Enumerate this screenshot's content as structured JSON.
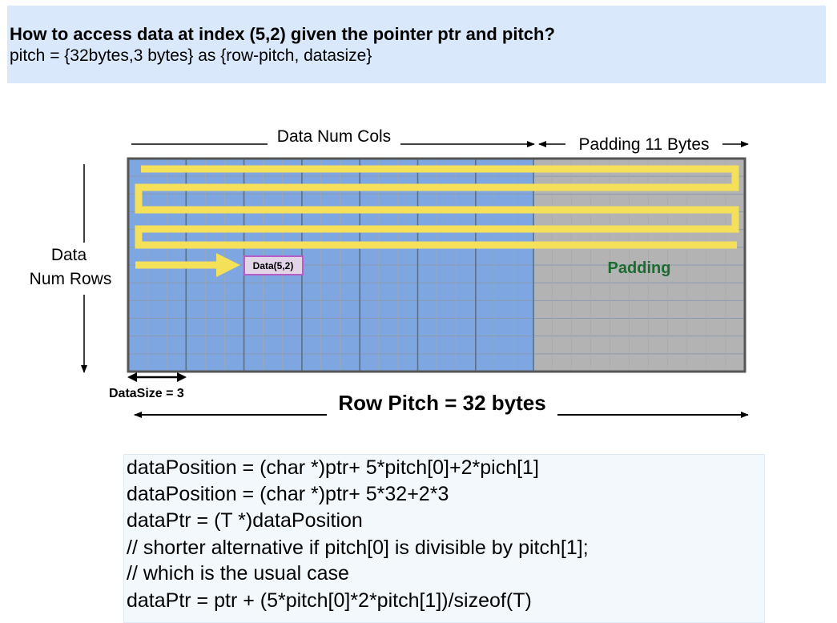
{
  "header": {
    "title": "How to access data at index (5,2) given the pointer ptr and pitch?",
    "subtitle": "pitch = {32bytes,3 bytes} as {row-pitch, datasize}"
  },
  "diagram": {
    "cols_label": "Data Num Cols",
    "padding_label": "Padding 11 Bytes",
    "rows_label_line1": "Data",
    "rows_label_line2": "Num Rows",
    "cell_label": "Data(5,2)",
    "padding_region_label": "Padding",
    "datasize_label": "DataSize = 3",
    "row_pitch_label": "Row Pitch = 32 bytes"
  },
  "code": {
    "lines": [
      "dataPosition = (char *)ptr+ 5*pitch[0]+2*pich[1]",
      "dataPosition = (char *)ptr+ 5*32+2*3",
      "dataPtr = (T *)dataPosition",
      "// shorter alternative if pitch[0] is divisible by pitch[1];",
      "// which is the usual case",
      "dataPtr = ptr + (5*pitch[0]*2*pitch[1])/sizeof(T)"
    ]
  },
  "colors": {
    "header_bg": "#dae8fc",
    "data_region": "#7ea6e0",
    "padding_region": "#b3b3b3",
    "scan_path": "#f5e05a",
    "cell_fill": "#e1d5e7",
    "cell_border": "#b85cc7",
    "padding_text": "#1e6b2f"
  }
}
